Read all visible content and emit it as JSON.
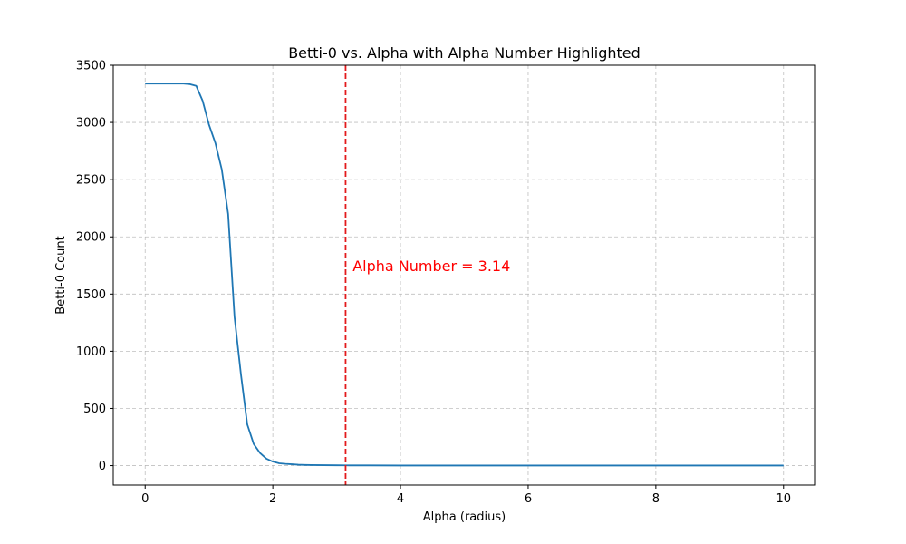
{
  "chart_data": {
    "type": "line",
    "title": "Betti-0 vs. Alpha with Alpha Number Highlighted",
    "xlabel": "Alpha (radius)",
    "ylabel": "Betti-0 Count",
    "xlim": [
      -0.5,
      10.5
    ],
    "ylim": [
      -170,
      3500
    ],
    "xticks": [
      0,
      2,
      4,
      6,
      8,
      10
    ],
    "yticks": [
      0,
      500,
      1000,
      1500,
      2000,
      2500,
      3000,
      3500
    ],
    "grid": true,
    "series": [
      {
        "color": "#1f77b4",
        "x": [
          0,
          0.1,
          0.2,
          0.3,
          0.4,
          0.5,
          0.6,
          0.7,
          0.8,
          0.9,
          1.0,
          1.1,
          1.2,
          1.3,
          1.4,
          1.5,
          1.6,
          1.7,
          1.8,
          1.9,
          2.0,
          2.1,
          2.2,
          2.3,
          2.4,
          2.5,
          2.6,
          2.8,
          3.0,
          3.2,
          3.5,
          4.0,
          5.0,
          6.0,
          7.0,
          8.0,
          9.0,
          10.0
        ],
        "y": [
          3340,
          3340,
          3340,
          3340,
          3340,
          3340,
          3340,
          3335,
          3320,
          3190,
          2980,
          2820,
          2590,
          2200,
          1300,
          800,
          360,
          190,
          110,
          60,
          35,
          20,
          15,
          12,
          8,
          6,
          5,
          4,
          3,
          2,
          2,
          1,
          1,
          1,
          1,
          1,
          1,
          1
        ]
      }
    ],
    "vline": {
      "x": 3.14,
      "color": "#e31a1c",
      "style": "dashed"
    },
    "annotation": {
      "text": "Alpha Number = 3.14",
      "x": 3.25,
      "y": 1700,
      "color": "#ff0000"
    }
  }
}
